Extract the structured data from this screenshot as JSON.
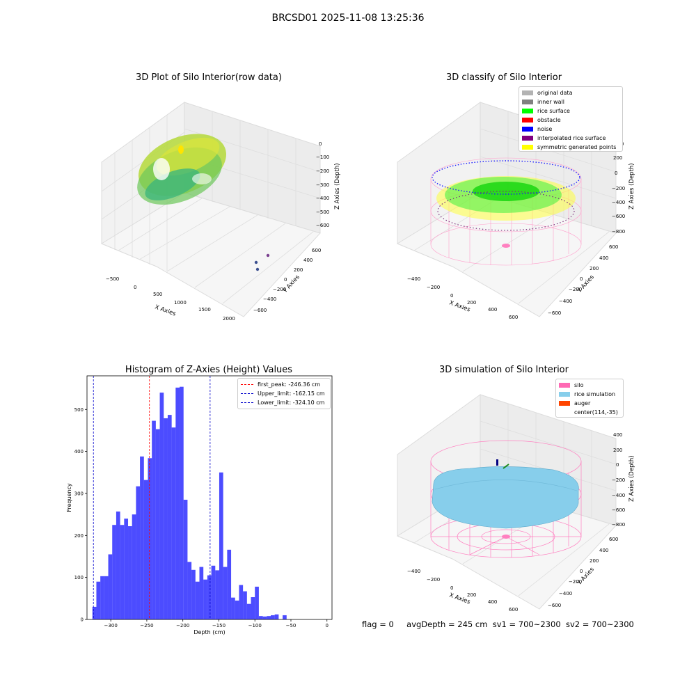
{
  "figure_title": "BRCSD01 2025-11-08 13:25:36",
  "footer": {
    "flag": "flag = 0",
    "avg_depth": "avgDepth = 245 cm",
    "sv1": "sv1 = 700~2300",
    "sv2": "sv2 = 700~2300"
  },
  "colors": {
    "hist_bar": "#0000ff",
    "first_peak": "#ff0000",
    "limits": "#0000cc",
    "silo": "#ff69b4",
    "rice_simulation": "#87ceeb",
    "auger": "#ff4500",
    "original_data": "#b3b3b3",
    "inner_wall": "#808080",
    "rice_surface": "#00ff00",
    "obstacle": "#ff0000",
    "noise": "#0000ff",
    "interpolated_rice_surface": "#800080",
    "symmetric_generated_points": "#ffff00"
  },
  "panels": {
    "raw": {
      "title": "3D Plot of Silo Interior(row data)",
      "xlabel": "X Axies",
      "ylabel": "Y Axies",
      "zlabel": "Z Axies (Depth)",
      "xticks": [
        "−500",
        "0",
        "500",
        "1000",
        "1500",
        "2000"
      ],
      "yticks": [
        "600",
        "400",
        "200",
        "0",
        "−200",
        "−400",
        "−600"
      ],
      "zticks": [
        "0",
        "−100",
        "−200",
        "−300",
        "−400",
        "−500",
        "−600"
      ]
    },
    "classify": {
      "title": "3D classify of Silo Interior",
      "xlabel": "X Axies",
      "ylabel": "Y Axies",
      "zlabel": "Z Axies (Depth)",
      "xticks": [
        "−400",
        "−200",
        "0",
        "200",
        "400",
        "600"
      ],
      "yticks": [
        "600",
        "400",
        "200",
        "0",
        "−200",
        "−400",
        "−600"
      ],
      "zticks": [
        "200",
        "0",
        "−200",
        "−400",
        "−600",
        "−800"
      ],
      "zticks_top": "400",
      "legend": [
        {
          "label": "original data",
          "color_key": "original_data"
        },
        {
          "label": "inner wall",
          "color_key": "inner_wall"
        },
        {
          "label": "rice surface",
          "color_key": "rice_surface"
        },
        {
          "label": "obstacle",
          "color_key": "obstacle"
        },
        {
          "label": "noise",
          "color_key": "noise"
        },
        {
          "label": "interpolated rice surface",
          "color_key": "interpolated_rice_surface"
        },
        {
          "label": "symmetric generated points",
          "color_key": "symmetric_generated_points"
        }
      ]
    },
    "sim": {
      "title": "3D simulation of Silo Interior",
      "xlabel": "X Axies",
      "ylabel": "Y Axies",
      "zlabel": "Z Axies (Depth)",
      "xticks": [
        "−400",
        "−200",
        "0",
        "200",
        "400",
        "600"
      ],
      "yticks": [
        "600",
        "400",
        "200",
        "0",
        "−200",
        "−400",
        "−600"
      ],
      "zticks": [
        "400",
        "200",
        "0",
        "−200",
        "−400",
        "−600",
        "−800"
      ],
      "legend": [
        {
          "label": "silo",
          "color_key": "silo"
        },
        {
          "label": "rice simulation",
          "color_key": "rice_simulation"
        },
        {
          "label": "auger",
          "color_key": "auger"
        },
        {
          "label": "center(114,-35)",
          "color_key": ""
        }
      ]
    }
  },
  "chart_data": {
    "type": "bar",
    "title": "Histogram of Z-Axies (Height) Values",
    "xlabel": "Depth (cm)",
    "ylabel": "Frequency",
    "xlim": [
      -333,
      7
    ],
    "ylim": [
      0,
      580
    ],
    "bin_width": 5.5,
    "bin_start": -325.5,
    "xticks": [
      -300,
      -250,
      -200,
      -150,
      -100,
      -50,
      0
    ],
    "xtick_labels": [
      "−300",
      "−250",
      "−200",
      "−150",
      "−100",
      "−50",
      "0"
    ],
    "yticks": [
      0,
      100,
      200,
      300,
      400,
      500
    ],
    "values": [
      30,
      90,
      103,
      103,
      155,
      225,
      257,
      225,
      240,
      222,
      250,
      317,
      388,
      332,
      384,
      473,
      453,
      540,
      479,
      487,
      457,
      552,
      554,
      285,
      137,
      118,
      90,
      125,
      95,
      105,
      128,
      117,
      350,
      125,
      166,
      52,
      45,
      82,
      67,
      37,
      53,
      78,
      8,
      7,
      8,
      10,
      12,
      0,
      10
    ],
    "vlines": [
      {
        "x": -246.36,
        "label": "first_peak: -246.36 cm",
        "color_key": "first_peak"
      },
      {
        "x": -162.15,
        "label": "Upper_limit: -162.15 cm",
        "color_key": "limits"
      },
      {
        "x": -324.1,
        "label": "Lower_limit: -324.10 cm",
        "color_key": "limits"
      }
    ],
    "legend_position": "upper right"
  }
}
